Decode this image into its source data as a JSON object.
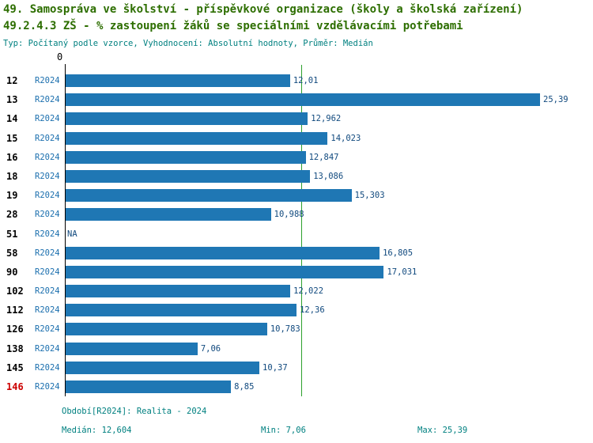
{
  "header": {
    "title_line1": "49. Samospráva ve školství - příspěvkové organizace (školy a školská zařízení)",
    "title_line2": "49.2.4.3 ZŠ - % zastoupení žáků se speciálními vzdělávacími potřebami",
    "subtitle": "Typ: Počítaný podle vzorce, Vyhodnocení: Absolutní hodnoty, Průměr: Medián"
  },
  "chart_data": {
    "type": "bar",
    "orientation": "horizontal",
    "series_label": "R2024",
    "axis_origin_label": "0",
    "xlim": [
      0,
      25.39
    ],
    "median_line_value": 12.604,
    "bar_color": "#1f77b4",
    "median_color": "#2ca02c",
    "highlight_id_color": "#cc0000",
    "rows": [
      {
        "id": "12",
        "value": 12.01,
        "label": "12,01"
      },
      {
        "id": "13",
        "value": 25.39,
        "label": "25,39"
      },
      {
        "id": "14",
        "value": 12.962,
        "label": "12,962"
      },
      {
        "id": "15",
        "value": 14.023,
        "label": "14,023"
      },
      {
        "id": "16",
        "value": 12.847,
        "label": "12,847"
      },
      {
        "id": "18",
        "value": 13.086,
        "label": "13,086"
      },
      {
        "id": "19",
        "value": 15.303,
        "label": "15,303"
      },
      {
        "id": "28",
        "value": 10.988,
        "label": "10,988"
      },
      {
        "id": "51",
        "value": null,
        "label": "NA"
      },
      {
        "id": "58",
        "value": 16.805,
        "label": "16,805"
      },
      {
        "id": "90",
        "value": 17.031,
        "label": "17,031"
      },
      {
        "id": "102",
        "value": 12.022,
        "label": "12,022"
      },
      {
        "id": "112",
        "value": 12.36,
        "label": "12,36"
      },
      {
        "id": "126",
        "value": 10.783,
        "label": "10,783"
      },
      {
        "id": "138",
        "value": 7.06,
        "label": "7,06"
      },
      {
        "id": "145",
        "value": 10.37,
        "label": "10,37"
      },
      {
        "id": "146",
        "value": 8.85,
        "label": "8,85",
        "highlight": true
      }
    ]
  },
  "footer": {
    "period": "Období[R2024]: Realita - 2024",
    "median": "Medián: 12,604",
    "min": "Min: 7,06",
    "max": "Max: 25,39"
  }
}
